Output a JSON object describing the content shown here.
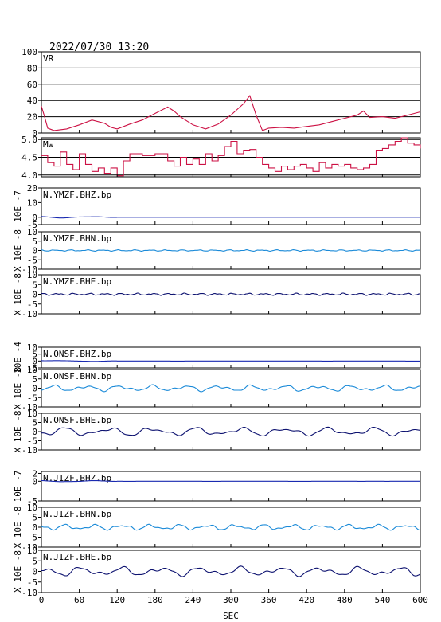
{
  "header": {
    "timestamp": "2022/07/30 13:20"
  },
  "colors": {
    "vr": "#cc1144",
    "mw": "#cc1144",
    "bhz": "#1a2ab0",
    "bhn": "#1a8ad8",
    "bhe": "#0d1270",
    "axis": "#000000",
    "grid": "#000000"
  },
  "chart_data": {
    "type": "line",
    "xlabel": "SEC",
    "xlim": [
      0,
      600
    ],
    "xticks": [
      "0",
      "60",
      "120",
      "180",
      "240",
      "300",
      "360",
      "420",
      "480",
      "540",
      "600"
    ],
    "panels": [
      {
        "id": "vr",
        "title": "VR",
        "yticks": [
          "0",
          "20",
          "40",
          "60",
          "80",
          "100"
        ],
        "ylim": [
          0,
          100
        ],
        "grid": true,
        "color_key": "vr",
        "ylabel": "",
        "series": {
          "name": "VR",
          "x": [
            0,
            5,
            10,
            20,
            40,
            60,
            80,
            100,
            110,
            120,
            140,
            160,
            180,
            200,
            210,
            220,
            240,
            260,
            280,
            300,
            320,
            330,
            340,
            350,
            360,
            380,
            400,
            420,
            440,
            460,
            480,
            500,
            510,
            520,
            540,
            560,
            580,
            600
          ],
          "y": [
            33,
            20,
            6,
            3,
            5,
            10,
            16,
            12,
            7,
            5,
            11,
            16,
            24,
            32,
            27,
            20,
            10,
            5,
            11,
            22,
            36,
            46,
            22,
            3,
            6,
            7,
            6,
            8,
            10,
            14,
            18,
            22,
            27,
            19,
            20,
            18,
            22,
            26
          ]
        }
      },
      {
        "id": "mw",
        "title": "Mw",
        "yticks": [
          "4.0",
          "4.5",
          "5.0"
        ],
        "ylim": [
          3.95,
          5.05
        ],
        "grid": true,
        "color_key": "mw",
        "ylabel": "",
        "series": {
          "name": "Mw",
          "x": [
            0,
            10,
            20,
            30,
            40,
            50,
            60,
            70,
            80,
            90,
            100,
            110,
            120,
            130,
            140,
            160,
            180,
            200,
            210,
            220,
            230,
            240,
            250,
            260,
            270,
            280,
            290,
            300,
            310,
            320,
            330,
            340,
            350,
            360,
            370,
            380,
            390,
            400,
            410,
            420,
            430,
            440,
            450,
            460,
            470,
            480,
            490,
            500,
            510,
            520,
            530,
            540,
            550,
            560,
            570,
            580,
            590,
            600
          ],
          "y": [
            4.55,
            4.35,
            4.25,
            4.65,
            4.3,
            4.15,
            4.6,
            4.3,
            4.1,
            4.2,
            4.05,
            4.2,
            3.98,
            4.4,
            4.6,
            4.55,
            4.6,
            4.4,
            4.25,
            4.5,
            4.3,
            4.45,
            4.3,
            4.6,
            4.4,
            4.55,
            4.8,
            4.95,
            4.6,
            4.7,
            4.72,
            4.5,
            4.3,
            4.2,
            4.1,
            4.25,
            4.15,
            4.25,
            4.3,
            4.2,
            4.1,
            4.35,
            4.2,
            4.3,
            4.25,
            4.3,
            4.2,
            4.15,
            4.2,
            4.3,
            4.7,
            4.75,
            4.85,
            4.95,
            5.05,
            4.9,
            4.85,
            4.75
          ]
        }
      },
      {
        "id": "ymzf-bhz",
        "title": "N.YMZF.BHZ.bp",
        "yticks": [
          "-5",
          "0",
          "10",
          "20"
        ],
        "ylim": [
          -5,
          20
        ],
        "grid": false,
        "color_key": "bhz",
        "ylabel": "10E -7",
        "wave": {
          "amp": 0.5,
          "freq": 0.05,
          "seed": 1,
          "decay": true
        }
      },
      {
        "id": "ymzf-bhn",
        "title": "N.YMZF.BHN.bp",
        "yticks": [
          "-10",
          "-5",
          "0",
          "5",
          "10"
        ],
        "ylim": [
          -10,
          10
        ],
        "grid": false,
        "color_key": "bhn",
        "ylabel": "X 10E -8",
        "wave": {
          "amp": 0.4,
          "freq": 0.25,
          "seed": 2
        }
      },
      {
        "id": "ymzf-bhe",
        "title": "N.YMZF.BHE.bp",
        "yticks": [
          "-10",
          "-5",
          "0",
          "5",
          "10"
        ],
        "ylim": [
          -10,
          10
        ],
        "grid": false,
        "color_key": "bhe",
        "ylabel": "X 10E -8",
        "wave": {
          "amp": 0.6,
          "freq": 0.25,
          "seed": 3
        }
      },
      {
        "id": "onsf-bhz",
        "title": "N.ONSF.BHZ.bp",
        "yticks": [
          "-5",
          "0",
          "5",
          "10"
        ],
        "ylim": [
          -5,
          10
        ],
        "grid": false,
        "color_key": "bhz",
        "ylabel": "10E -4",
        "wave": {
          "amp": 0.3,
          "freq": 0.05,
          "seed": 4,
          "decay": true
        }
      },
      {
        "id": "onsf-bhn",
        "title": "N.ONSF.BHN.bp",
        "yticks": [
          "-10",
          "-5",
          "0",
          "5",
          "10"
        ],
        "ylim": [
          -10,
          10
        ],
        "grid": false,
        "color_key": "bhn",
        "ylabel": "X 10E -8",
        "wave": {
          "amp": 1.8,
          "freq": 0.12,
          "seed": 5
        }
      },
      {
        "id": "onsf-bhe",
        "title": "N.ONSF.BHE.bp",
        "yticks": [
          "-10",
          "-5",
          "0",
          "5",
          "10"
        ],
        "ylim": [
          -10,
          10
        ],
        "grid": false,
        "color_key": "bhe",
        "ylabel": "X 10E -8",
        "wave": {
          "amp": 2.6,
          "freq": 0.09,
          "seed": 6
        }
      },
      {
        "id": "jizf-bhz",
        "title": "N.JIZF.BHZ.bp",
        "yticks": [
          "-5",
          "0",
          "2"
        ],
        "ylim": [
          -5,
          2.5
        ],
        "grid": false,
        "color_key": "bhz",
        "ylabel": "10E -7",
        "wave": {
          "amp": 0.15,
          "freq": 0.05,
          "seed": 7,
          "decay": true
        }
      },
      {
        "id": "jizf-bhn",
        "title": "N.JIZF.BHN.bp",
        "yticks": [
          "-10",
          "-5",
          "0",
          "5",
          "10"
        ],
        "ylim": [
          -10,
          10
        ],
        "grid": false,
        "color_key": "bhn",
        "ylabel": "X 10E -8",
        "wave": {
          "amp": 1.6,
          "freq": 0.14,
          "seed": 8
        }
      },
      {
        "id": "jizf-bhe",
        "title": "N.JIZF.BHE.bp",
        "yticks": [
          "-10",
          "-5",
          "0",
          "5",
          "10"
        ],
        "ylim": [
          -10,
          10
        ],
        "grid": false,
        "color_key": "bhe",
        "ylabel": "X 10E -8",
        "wave": {
          "amp": 2.4,
          "freq": 0.1,
          "seed": 9
        }
      }
    ]
  }
}
